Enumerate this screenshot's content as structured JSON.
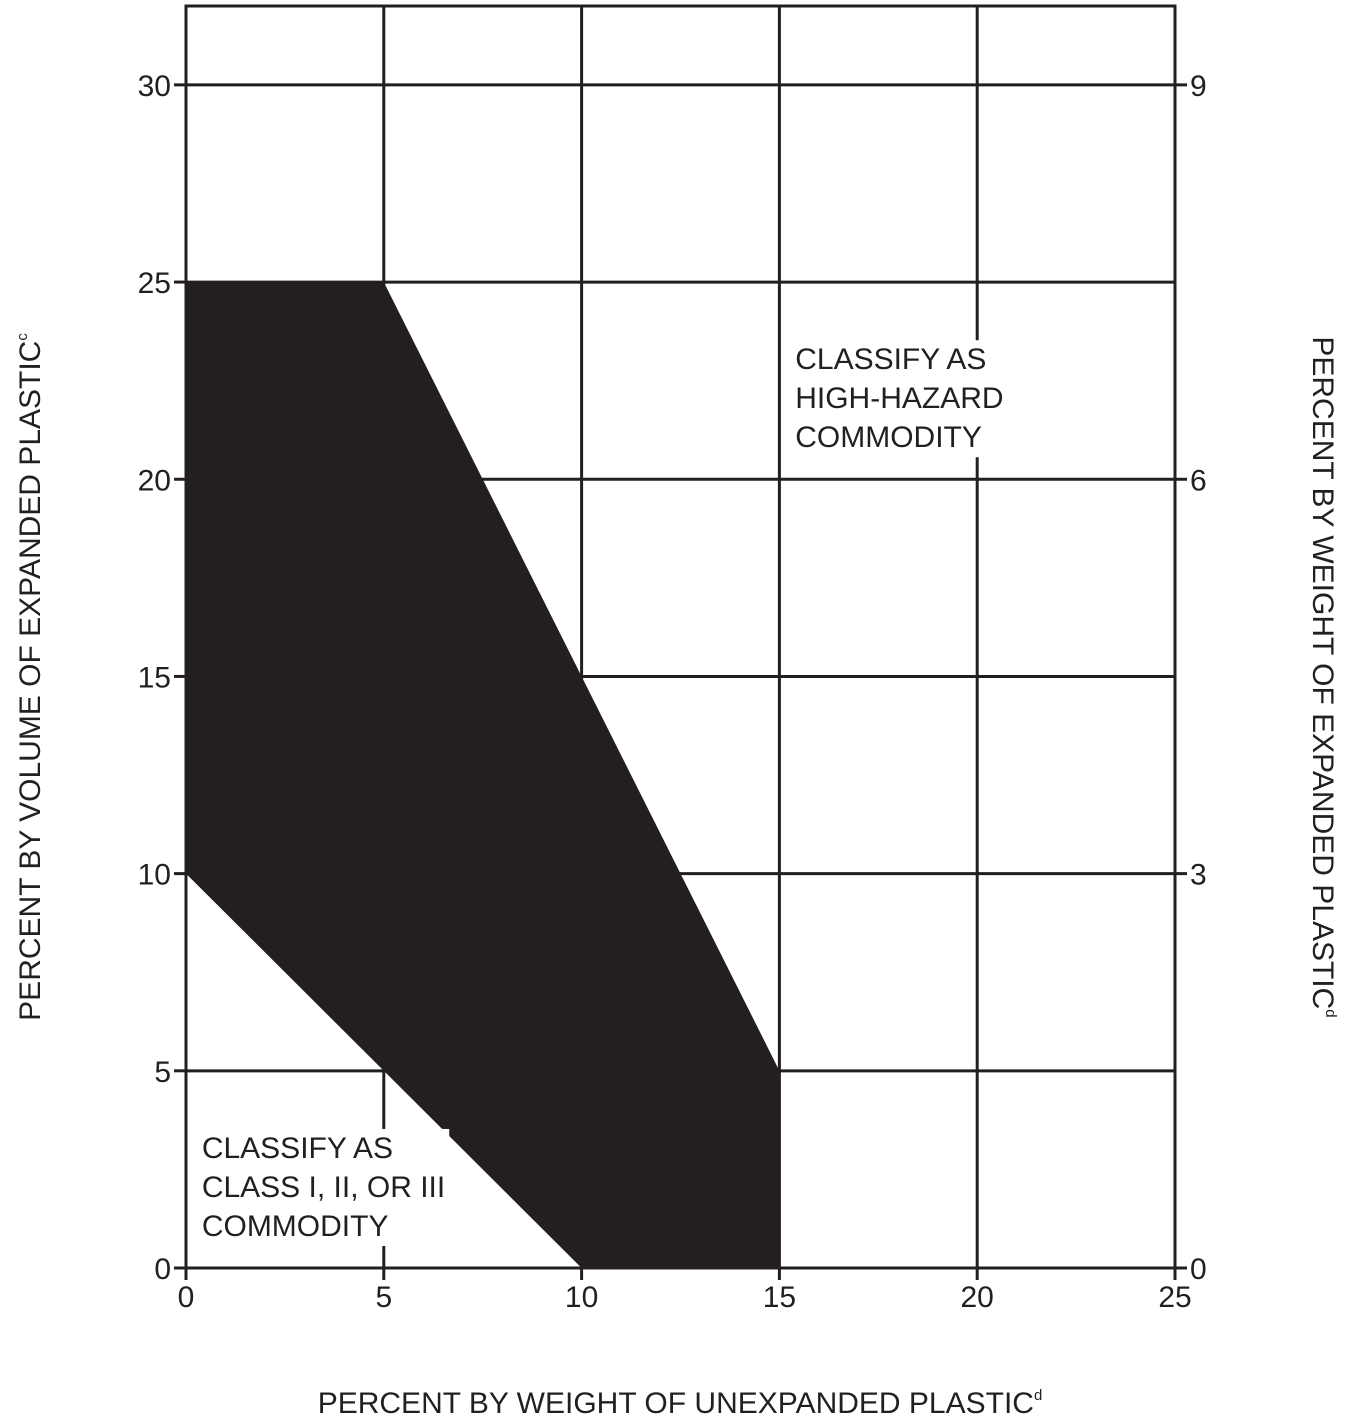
{
  "chart_data": {
    "type": "area",
    "title": "",
    "xlabel": "PERCENT BY WEIGHT OF UNEXPANDED PLASTIC",
    "xlabel_sup": "d",
    "ylabel": "PERCENT BY VOLUME OF EXPANDED PLASTIC",
    "ylabel_sup": "c",
    "y2label": "PERCENT BY WEIGHT OF EXPANDED PLASTIC",
    "y2label_sup": "d",
    "xlim": [
      0,
      25
    ],
    "ylim": [
      0,
      32
    ],
    "y2lim": [
      0,
      9.6
    ],
    "x_ticks": [
      0,
      5,
      10,
      15,
      20,
      25
    ],
    "y_ticks": [
      0,
      5,
      10,
      15,
      20,
      25,
      30
    ],
    "y2_ticks": [
      0,
      3,
      6,
      9
    ],
    "grid": true,
    "region_color": "#231f20",
    "transition_region": {
      "name": "",
      "points": [
        [
          0,
          10
        ],
        [
          0,
          25
        ],
        [
          5,
          25
        ],
        [
          15,
          5
        ],
        [
          15,
          0
        ],
        [
          10,
          0
        ]
      ]
    },
    "annotations": [
      {
        "lines": [
          "CLASSIFY AS",
          "HIGH-HAZARD",
          "COMMODITY"
        ],
        "x": 15.4,
        "y": 23.5
      },
      {
        "lines": [
          "CLASSIFY AS",
          "CLASS I, II, OR III",
          "COMMODITY"
        ],
        "x": 0.4,
        "y": 3.5
      }
    ]
  }
}
